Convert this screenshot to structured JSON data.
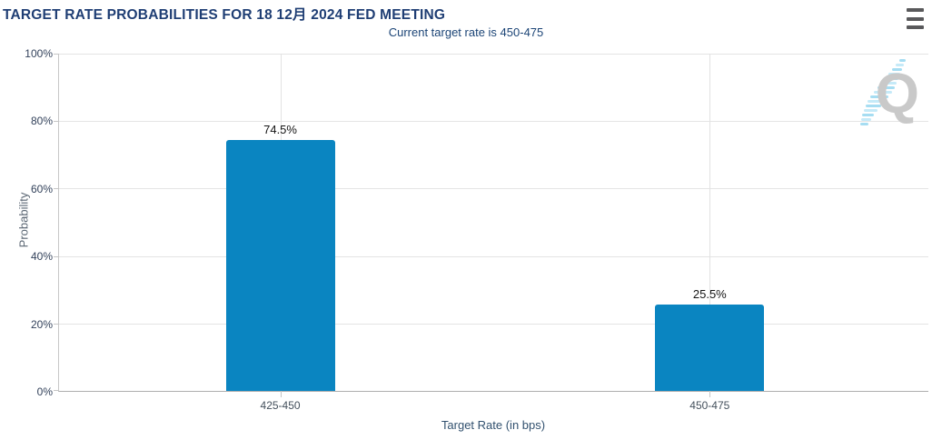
{
  "header": {
    "title": "TARGET RATE PROBABILITIES FOR 18 12月 2024 FED MEETING"
  },
  "menu": {
    "icon": "hamburger-icon"
  },
  "watermark": {
    "letter": "Q"
  },
  "chart_data": {
    "type": "bar",
    "title": "TARGET RATE PROBABILITIES FOR 18 12月 2024 FED MEETING",
    "subtitle": "Current target rate is 450-475",
    "categories": [
      "425-450",
      "450-475"
    ],
    "values": [
      74.5,
      25.5
    ],
    "value_labels": [
      "74.5%",
      "25.5%"
    ],
    "xlabel": "Target Rate (in bps)",
    "ylabel": "Probability",
    "ylim": [
      0,
      100
    ],
    "ytick_interval": 20,
    "yticks": [
      "0%",
      "20%",
      "40%",
      "60%",
      "80%",
      "100%"
    ],
    "grid": true,
    "legend_position": "none",
    "bar_color": "#0a85c1",
    "title_color": "#1f3e74",
    "value_label_color": "#141414"
  }
}
